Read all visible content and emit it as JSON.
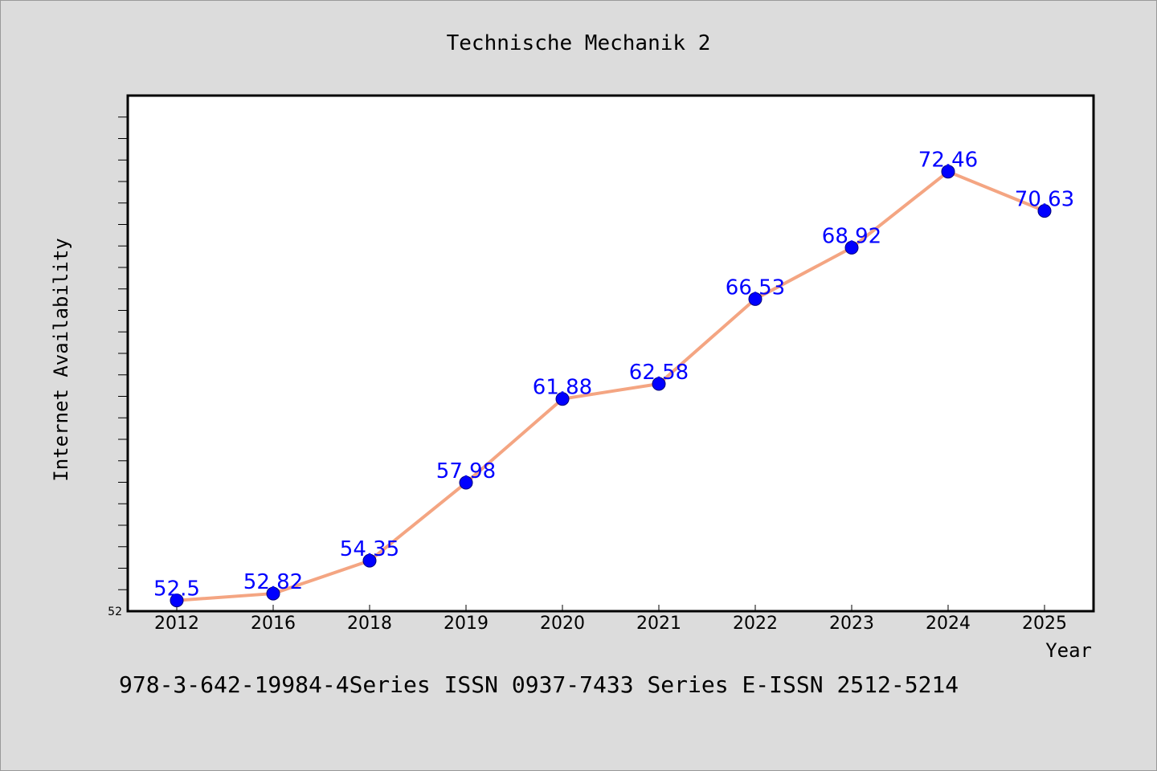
{
  "chart_data": {
    "type": "line",
    "title": "Technische Mechanik 2",
    "xlabel": "Year",
    "ylabel": "Internet Availability",
    "categories": [
      "2012",
      "2016",
      "2018",
      "2019",
      "2020",
      "2021",
      "2022",
      "2023",
      "2024",
      "2025"
    ],
    "series": [
      {
        "values": [
          52.5,
          52.82,
          54.35,
          57.98,
          61.88,
          62.58,
          66.53,
          68.92,
          72.46,
          70.63
        ],
        "data_labels": [
          "52.5",
          "52.82",
          "54.35",
          "57.98",
          "61.88",
          "62.58",
          "66.53",
          "68.92",
          "72.46",
          "70.63"
        ]
      }
    ],
    "y_tick_label": "52",
    "ylim": [
      52,
      76
    ],
    "grid": false,
    "legend": "none",
    "colors": {
      "line": "#f4a582",
      "marker": "#0000ff",
      "data_label": "#0000ff",
      "plot_background": "#ffffff",
      "figure_background": "#dcdcdc"
    }
  },
  "footer_text": "978-3-642-19984-4Series ISSN 0937-7433 Series E-ISSN 2512-5214"
}
